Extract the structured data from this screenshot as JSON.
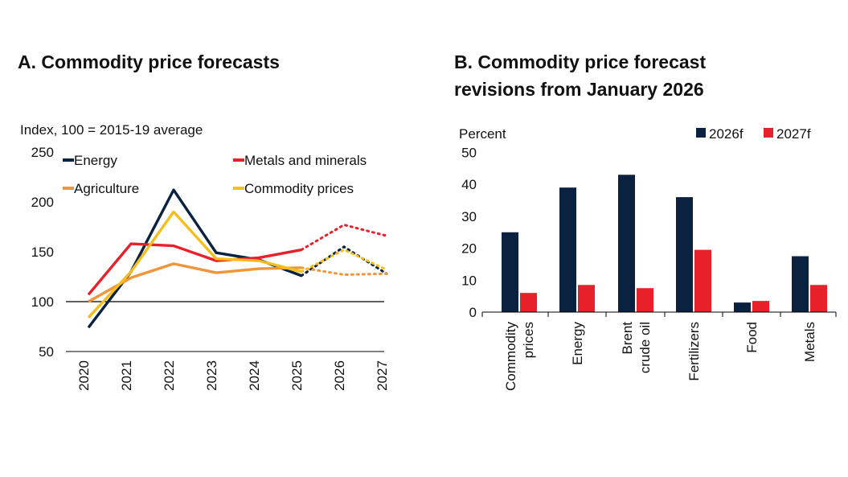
{
  "colors": {
    "energy": "#0a2240",
    "metals": "#e8202a",
    "agriculture": "#f0953a",
    "commodity": "#f5be1c",
    "bar2026": "#0a2240",
    "bar2027": "#e8202a"
  },
  "chart_data": [
    {
      "type": "line",
      "title": "A. Commodity price forecasts",
      "ylabel": "Index, 100 = 2015-19 average",
      "x": [
        "2020",
        "2021",
        "2022",
        "2023",
        "2024",
        "2025",
        "2026",
        "2027"
      ],
      "ylim": [
        50,
        250
      ],
      "yticks": [
        50,
        100,
        150,
        200,
        250
      ],
      "reference_line": 100,
      "forecast_from": "2025",
      "legend_position": "top",
      "series": [
        {
          "name": "Energy",
          "color": "energy",
          "values": [
            74,
            130,
            212,
            149,
            142,
            126,
            155,
            128
          ]
        },
        {
          "name": "Metals and minerals",
          "color": "metals",
          "values": [
            107,
            158,
            156,
            141,
            144,
            152,
            177,
            166
          ]
        },
        {
          "name": "Agriculture",
          "color": "agriculture",
          "values": [
            100,
            124,
            138,
            129,
            133,
            134,
            127,
            128
          ]
        },
        {
          "name": "Commodity prices",
          "color": "commodity",
          "values": [
            84,
            130,
            190,
            143,
            141,
            130,
            152,
            132
          ]
        }
      ]
    },
    {
      "type": "bar",
      "title": "B. Commodity price forecast revisions from January 2026",
      "ylabel": "Percent",
      "categories": [
        [
          "Commodity",
          "prices"
        ],
        [
          "Energy"
        ],
        [
          "Brent",
          "crude oil"
        ],
        [
          "Fertilizers"
        ],
        [
          "Food"
        ],
        [
          "Metals"
        ]
      ],
      "ylim": [
        0,
        50
      ],
      "yticks": [
        0,
        10,
        20,
        30,
        40,
        50
      ],
      "legend_position": "top-right",
      "series": [
        {
          "name": "2026f",
          "color": "bar2026",
          "values": [
            25,
            39,
            43,
            36,
            3,
            17.5
          ]
        },
        {
          "name": "2027f",
          "color": "bar2027",
          "values": [
            6,
            8.5,
            7.5,
            19.5,
            3.5,
            8.5
          ]
        }
      ]
    }
  ]
}
